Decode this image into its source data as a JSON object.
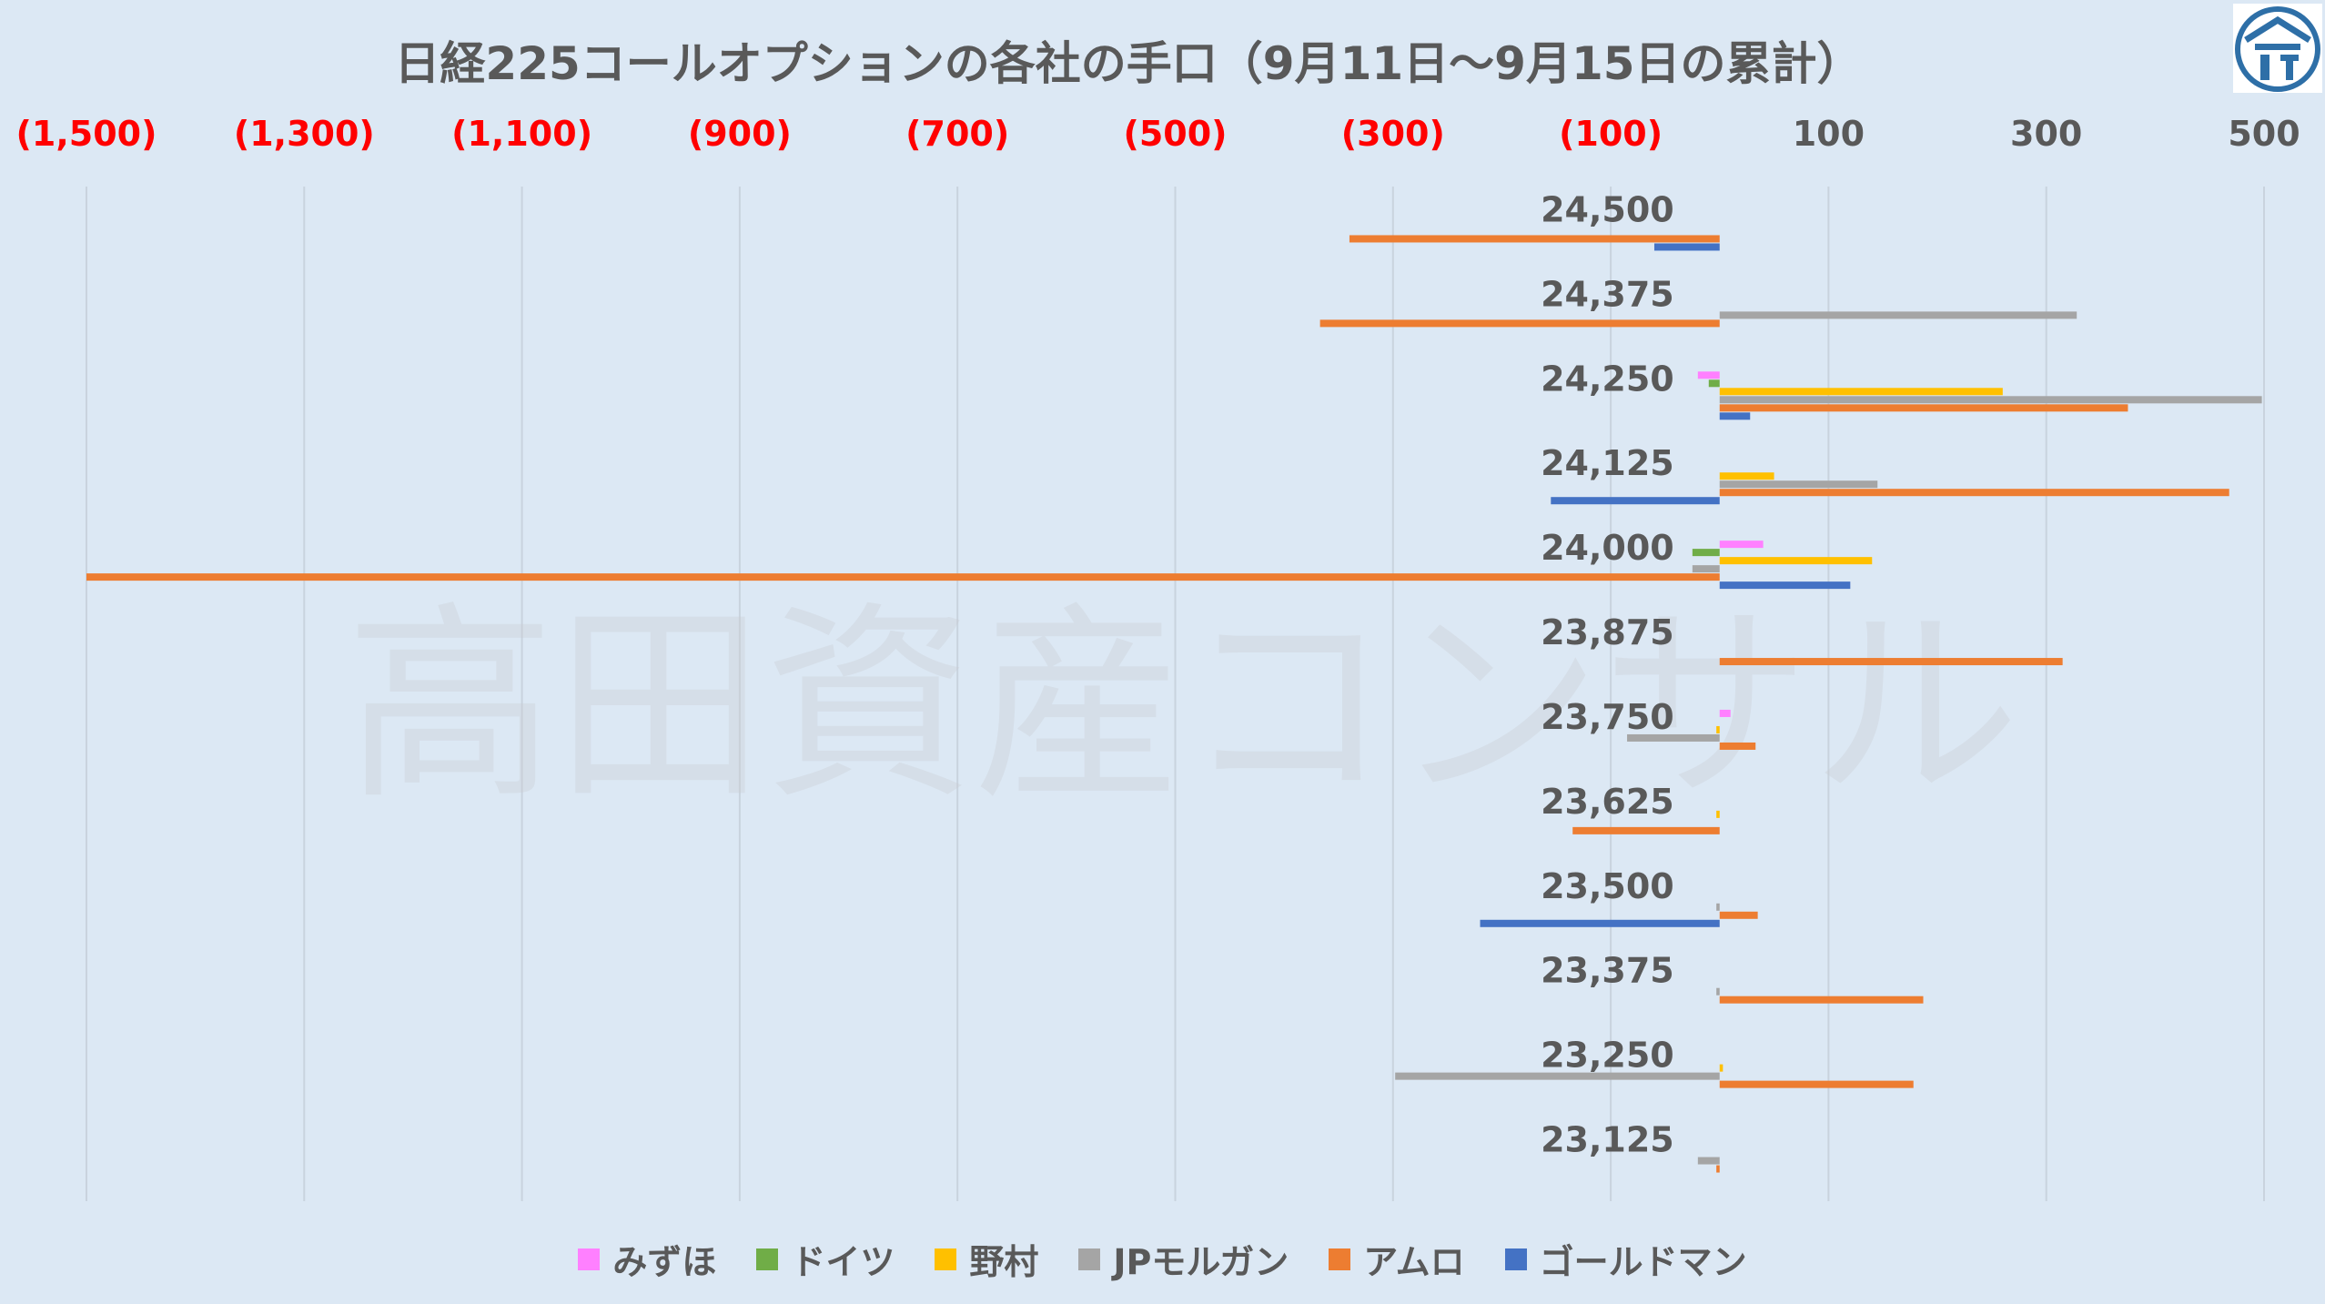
{
  "chart_data": {
    "type": "bar",
    "orientation": "horizontal",
    "title": "日経225コールオプションの各社の手口（9月11日～9月15日の累計）",
    "xlim": [
      -1500,
      500
    ],
    "x_ticks": [
      -1500,
      -1300,
      -1100,
      -900,
      -700,
      -500,
      -300,
      -100,
      100,
      300,
      500
    ],
    "x_tick_labels": [
      "(1,500)",
      "(1,300)",
      "(1,100)",
      "(900)",
      "(700)",
      "(500)",
      "(300)",
      "(100)",
      "100",
      "300",
      "500"
    ],
    "x_tick_colors": [
      "#ff0000",
      "#ff0000",
      "#ff0000",
      "#ff0000",
      "#ff0000",
      "#ff0000",
      "#ff0000",
      "#ff0000",
      "#595959",
      "#595959",
      "#595959"
    ],
    "grid": true,
    "legend_position": "bottom",
    "categories": [
      "24,500",
      "24,375",
      "24,250",
      "24,125",
      "24,000",
      "23,875",
      "23,750",
      "23,625",
      "23,500",
      "23,375",
      "23,250",
      "23,125"
    ],
    "series": [
      {
        "name": "みずほ",
        "color": "#ff80ff",
        "values": [
          0,
          0,
          -20,
          0,
          40,
          0,
          10,
          0,
          0,
          0,
          0,
          0
        ]
      },
      {
        "name": "ドイツ",
        "color": "#70ad47",
        "values": [
          0,
          0,
          -10,
          0,
          -25,
          0,
          0,
          0,
          0,
          0,
          0,
          0
        ]
      },
      {
        "name": "野村",
        "color": "#ffc000",
        "values": [
          0,
          0,
          260,
          50,
          140,
          0,
          -3,
          -3,
          0,
          0,
          3,
          0
        ]
      },
      {
        "name": "JPモルガン",
        "color": "#a5a5a5",
        "values": [
          0,
          328,
          498,
          145,
          -25,
          0,
          -85,
          0,
          -3,
          -3,
          -298,
          -20
        ]
      },
      {
        "name": "アムロ",
        "color": "#ed7d31",
        "values": [
          -340,
          -367,
          375,
          468,
          -1500,
          315,
          33,
          -135,
          35,
          187,
          178,
          -3
        ]
      },
      {
        "name": "ゴールドマン",
        "color": "#4472c4",
        "values": [
          -60,
          0,
          28,
          -155,
          120,
          0,
          0,
          0,
          -220,
          0,
          0,
          0
        ]
      }
    ]
  },
  "watermark": "高田資産コンサル",
  "logo": "takata-logo-icon"
}
